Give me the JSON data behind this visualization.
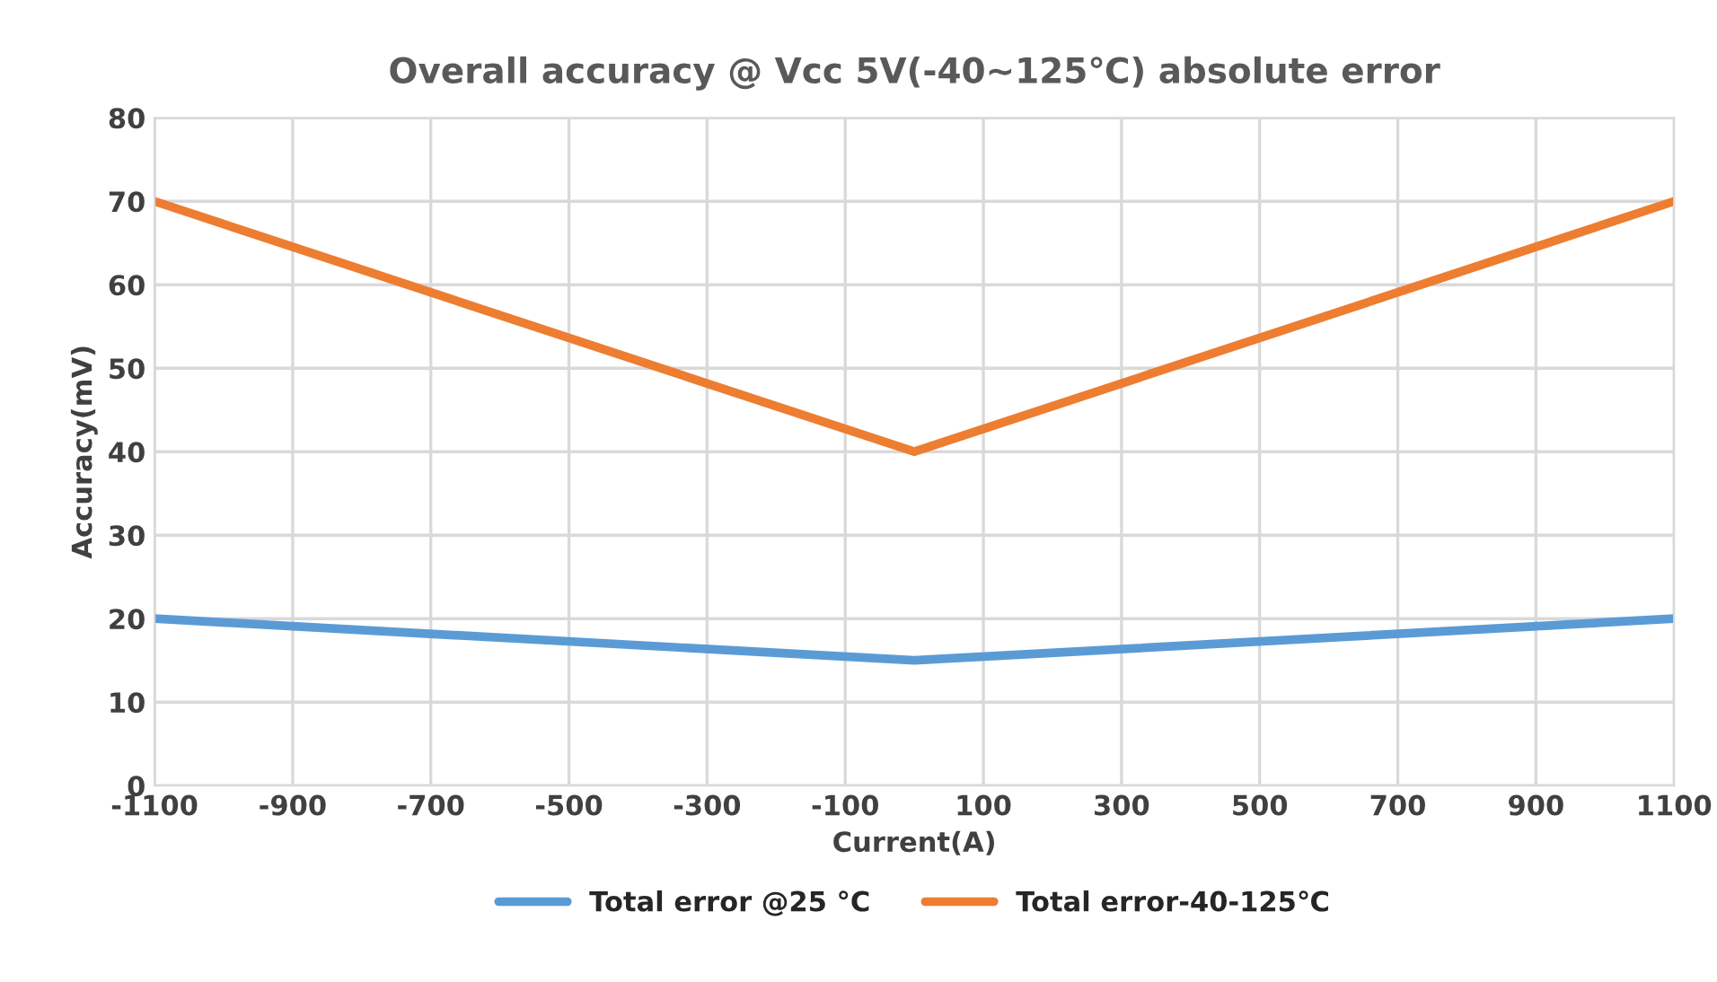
{
  "chart_data": {
    "type": "line",
    "title": "Overall accuracy @ Vcc 5V(-40~125℃) absolute error",
    "xlabel": "Current(A)",
    "ylabel": "Accuracy(mV)",
    "x": [
      -1100,
      0,
      1100
    ],
    "series": [
      {
        "name": "Total error @25 °C",
        "color": "#5b9bd5",
        "values": [
          20,
          15,
          20
        ]
      },
      {
        "name": "Total error-40-125℃",
        "color": "#ed7d31",
        "values": [
          70,
          40,
          70
        ]
      }
    ],
    "xlim": [
      -1100,
      1100
    ],
    "xticks": [
      -1100,
      -900,
      -700,
      -500,
      -300,
      -100,
      100,
      300,
      500,
      700,
      900,
      1100
    ],
    "ylim": [
      0,
      80
    ],
    "yticks": [
      0,
      10,
      20,
      30,
      40,
      50,
      60,
      70,
      80
    ],
    "grid": true,
    "legend": "bottom",
    "marker": "none",
    "line_style": "solid"
  }
}
